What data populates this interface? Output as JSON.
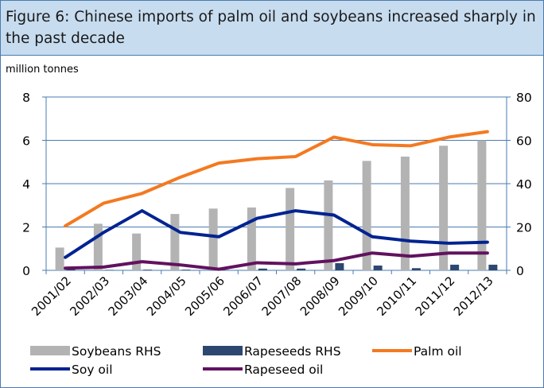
{
  "figure": {
    "title": "Figure 6: Chinese imports of palm oil and soybeans increased sharply in the past decade",
    "unit_label": "million tonnes"
  },
  "chart_data": {
    "type": "bar+line",
    "categories": [
      "2001/02",
      "2002/03",
      "2003/04",
      "2004/05",
      "2005/06",
      "2006/07",
      "2007/08",
      "2008/09",
      "2009/10",
      "2010/11",
      "2011/12",
      "2012/13"
    ],
    "left_axis": {
      "range": [
        0,
        8
      ],
      "ticks": [
        0,
        2,
        4,
        6,
        8
      ]
    },
    "right_axis": {
      "range": [
        0,
        80
      ],
      "ticks": [
        0,
        20,
        40,
        60,
        80
      ]
    },
    "bars": [
      {
        "name": "Soybeans RHS",
        "axis": "right",
        "color": "#b3b3b3",
        "values": [
          10.5,
          21.5,
          17,
          26,
          28.5,
          29,
          38,
          41.5,
          50.5,
          52.5,
          57.5,
          60
        ]
      },
      {
        "name": "Rapeseeds RHS",
        "axis": "right",
        "color": "#2c4770",
        "values": [
          0.5,
          0.2,
          0.3,
          0.3,
          0.2,
          0.8,
          0.8,
          3.3,
          2.2,
          1.0,
          2.6,
          2.6
        ]
      }
    ],
    "lines": [
      {
        "name": "Palm oil",
        "axis": "left",
        "color": "#f47920",
        "values": [
          2.05,
          3.1,
          3.55,
          4.3,
          4.95,
          5.15,
          5.25,
          6.15,
          5.8,
          5.75,
          6.15,
          6.4
        ]
      },
      {
        "name": "Soy oil",
        "axis": "left",
        "color": "#002391",
        "values": [
          0.6,
          1.75,
          2.75,
          1.75,
          1.55,
          2.4,
          2.75,
          2.55,
          1.55,
          1.35,
          1.25,
          1.3
        ]
      },
      {
        "name": "Rapeseed oil",
        "axis": "left",
        "color": "#61125e",
        "values": [
          0.1,
          0.15,
          0.4,
          0.25,
          0.05,
          0.35,
          0.3,
          0.45,
          0.8,
          0.65,
          0.8,
          0.8
        ]
      }
    ],
    "legend": {
      "rows": [
        [
          "Soybeans RHS",
          "Rapeseeds RHS",
          "Palm oil"
        ],
        [
          "Soy oil",
          "Rapeseed oil"
        ]
      ],
      "position": "bottom"
    },
    "grid": "horizontal",
    "grid_color": "#4a7bb0"
  }
}
